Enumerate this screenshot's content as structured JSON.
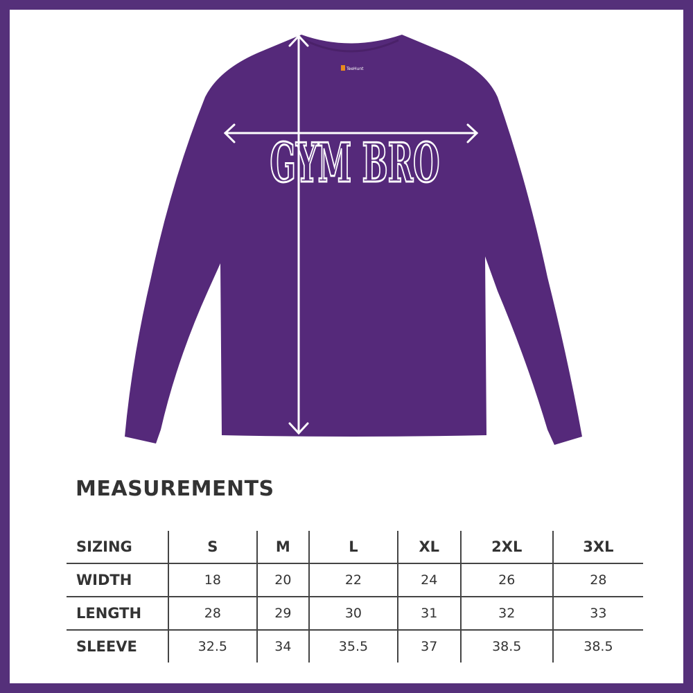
{
  "product": {
    "print_text": "GYM BRO",
    "label_brand": "TeeHunt",
    "shirt_color": "#55297a",
    "frame_color": "#55307a"
  },
  "measurements": {
    "title": "MEASUREMENTS",
    "header": [
      "SIZING",
      "S",
      "M",
      "L",
      "XL",
      "2XL",
      "3XL"
    ],
    "rows": [
      {
        "label": "WIDTH",
        "values": [
          "18",
          "20",
          "22",
          "24",
          "26",
          "28"
        ]
      },
      {
        "label": "LENGTH",
        "values": [
          "28",
          "29",
          "30",
          "31",
          "32",
          "33"
        ]
      },
      {
        "label": "SLEEVE",
        "values": [
          "32.5",
          "34",
          "35.5",
          "37",
          "38.5",
          "38.5"
        ]
      }
    ]
  }
}
